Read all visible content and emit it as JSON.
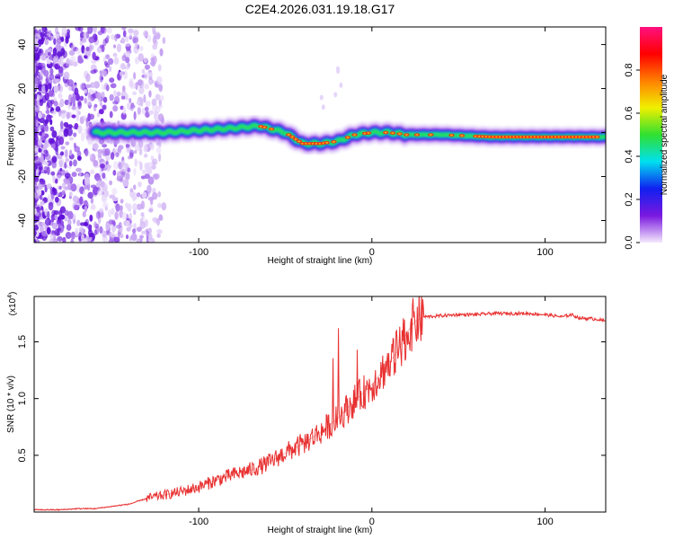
{
  "title": "C2E4.2026.031.19.18.G17",
  "chart_data": [
    {
      "type": "heatmap",
      "xlabel": "Height of straight line (km)",
      "ylabel": "Frequency (Hz)",
      "xlim": [
        -195,
        135
      ],
      "ylim": [
        -50,
        48
      ],
      "xticks": [
        -100,
        0,
        100
      ],
      "xtick_labels": [
        "-100",
        "0",
        "100"
      ],
      "yticks": [
        -40,
        -20,
        0,
        20,
        40
      ],
      "ytick_labels": [
        "-40",
        "-20",
        "0",
        "20",
        "40"
      ],
      "ridge": {
        "x": [
          -160,
          -140,
          -120,
          -100,
          -80,
          -65,
          -50,
          -40,
          -30,
          -20,
          -10,
          0,
          10,
          20,
          40,
          70,
          100,
          110,
          135
        ],
        "y": [
          0,
          0,
          0,
          1,
          2,
          3,
          0,
          -5,
          -5,
          -4,
          -1,
          0,
          0,
          -1,
          -1,
          -2,
          -2,
          -2,
          -2
        ]
      },
      "colorbar": {
        "label": "Normalized spectral amplitude",
        "range": [
          0,
          1
        ],
        "ticks": [
          0.0,
          0.2,
          0.4,
          0.6,
          0.8
        ],
        "tick_labels": [
          "0.0",
          "0.2",
          "0.4",
          "0.6",
          "0.8"
        ],
        "colormap": [
          "#f4e8fc",
          "#7a18e0",
          "#1020f0",
          "#00e0f0",
          "#30e030",
          "#f0f000",
          "#ff8000",
          "#ff0000",
          "#ff1080"
        ]
      }
    },
    {
      "type": "line",
      "xlabel": "Height of straight line (km)",
      "ylabel": "SNR (10 * v/v)",
      "scale_label": "(x10",
      "scale_exp": "4",
      "scale_close": ")",
      "color": "#e83030",
      "xlim": [
        -195,
        135
      ],
      "ylim": [
        0,
        1.9
      ],
      "xticks": [
        -100,
        0,
        100
      ],
      "xtick_labels": [
        "-100",
        "0",
        "100"
      ],
      "yticks": [
        0.5,
        1.0,
        1.5
      ],
      "ytick_labels": [
        "0.5",
        "1.0",
        "1.5"
      ],
      "x": [
        -195,
        -180,
        -170,
        -160,
        -150,
        -140,
        -130,
        -120,
        -110,
        -100,
        -90,
        -80,
        -70,
        -60,
        -50,
        -40,
        -30,
        -20,
        -10,
        0,
        5,
        10,
        15,
        20,
        25,
        30,
        40,
        50,
        60,
        70,
        80,
        90,
        100,
        110,
        115,
        120,
        130,
        135
      ],
      "y": [
        0.02,
        0.02,
        0.03,
        0.03,
        0.05,
        0.07,
        0.12,
        0.15,
        0.18,
        0.22,
        0.28,
        0.33,
        0.37,
        0.43,
        0.52,
        0.6,
        0.7,
        0.82,
        0.98,
        1.12,
        1.22,
        1.32,
        1.42,
        1.58,
        1.68,
        1.72,
        1.73,
        1.74,
        1.74,
        1.75,
        1.75,
        1.75,
        1.74,
        1.72,
        1.74,
        1.71,
        1.7,
        1.68
      ]
    }
  ]
}
